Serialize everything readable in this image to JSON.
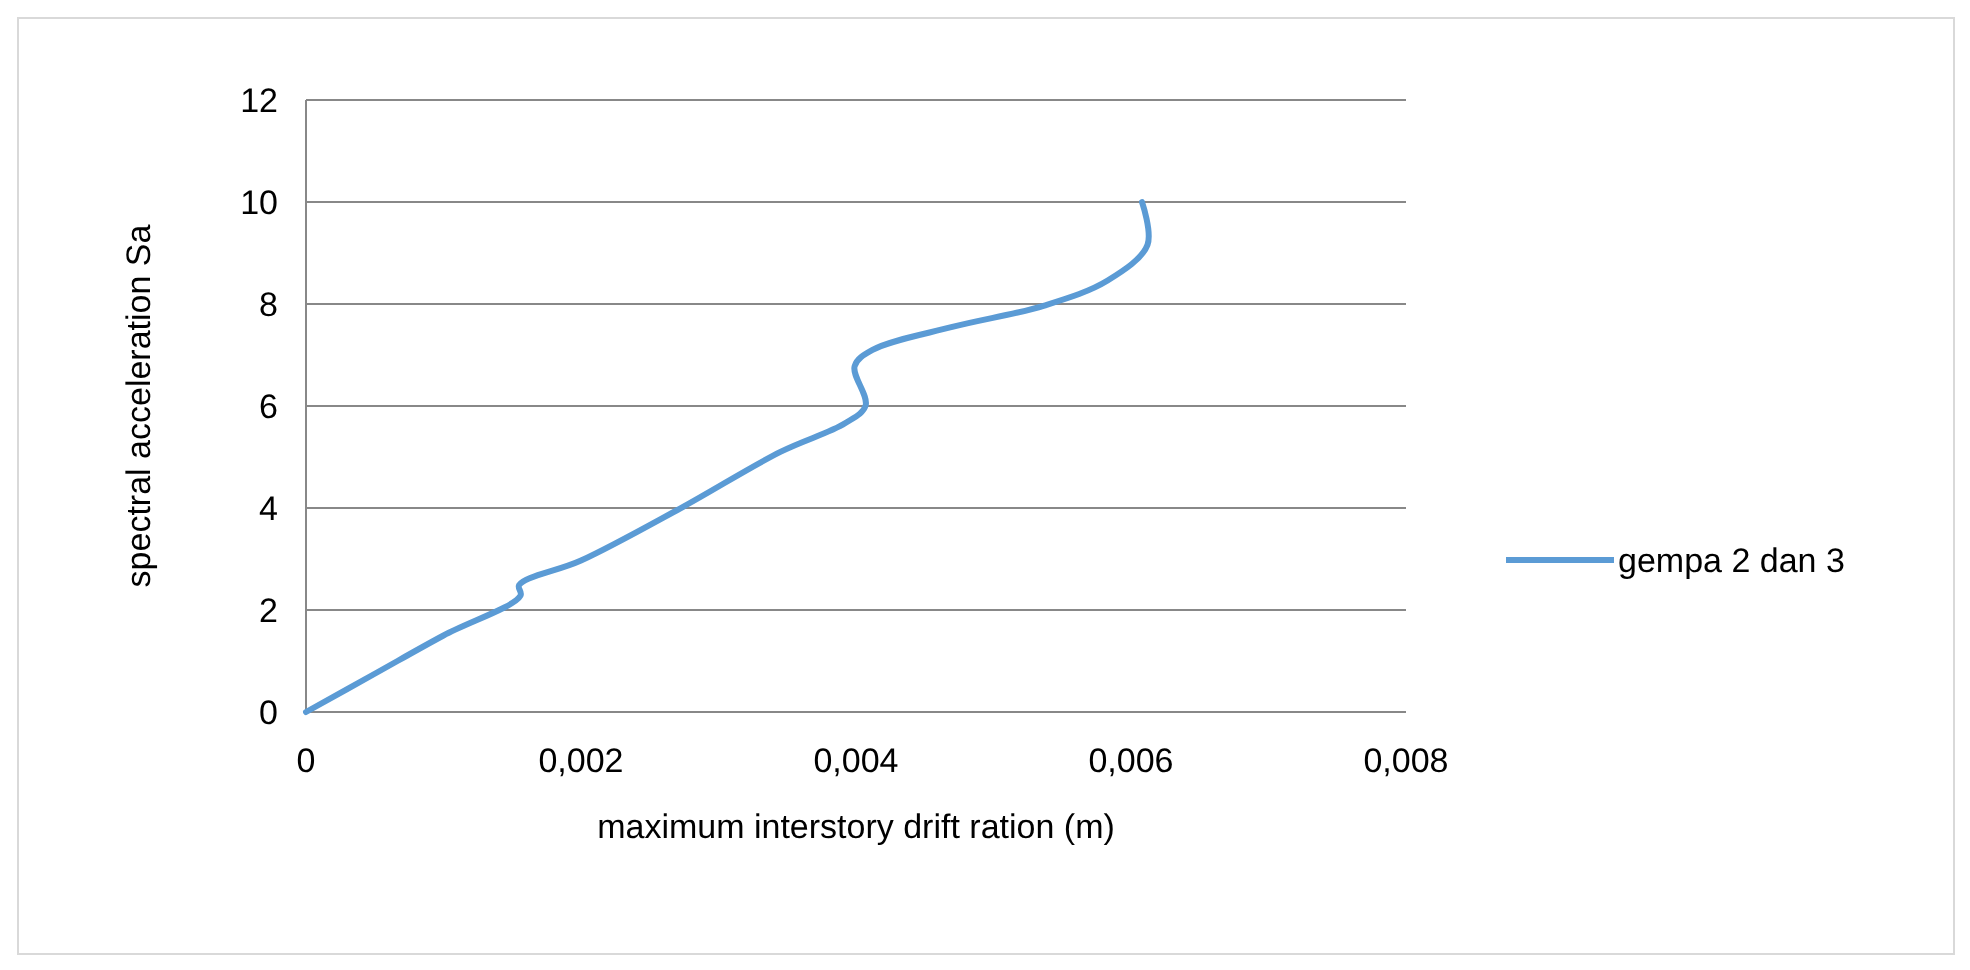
{
  "chart_data": {
    "type": "line",
    "xlabel": "maximum interstory drift ration (m)",
    "ylabel": "spectral acceleration Sa",
    "series": [
      {
        "name": "gempa 2 dan 3",
        "color": "#5b9bd5",
        "x": [
          0,
          0.0005,
          0.001,
          0.00156,
          0.00155,
          0.002,
          0.00272,
          0.00345,
          0.00392,
          0.00407,
          0.00399,
          0.00412,
          0.0047,
          0.00537,
          0.00583,
          0.00612,
          0.00608
        ],
        "values": [
          0,
          0.75,
          1.5,
          2.28,
          2.49,
          2.97,
          3.99,
          5.1,
          5.66,
          6.01,
          6.78,
          7.1,
          7.55,
          7.97,
          8.46,
          9.16,
          10
        ]
      }
    ],
    "xlim": [
      0,
      0.008
    ],
    "xticks": [
      {
        "value": 0,
        "label": "0"
      },
      {
        "value": 0.002,
        "label": "0,002"
      },
      {
        "value": 0.004,
        "label": "0,004"
      },
      {
        "value": 0.006,
        "label": "0,006"
      },
      {
        "value": 0.008,
        "label": "0,008"
      }
    ],
    "ylim": [
      0,
      12
    ],
    "yticks": [
      0,
      2,
      4,
      6,
      8,
      10,
      12
    ],
    "grid": "y",
    "legend": "right",
    "marker": "none",
    "line_style": "solid"
  }
}
